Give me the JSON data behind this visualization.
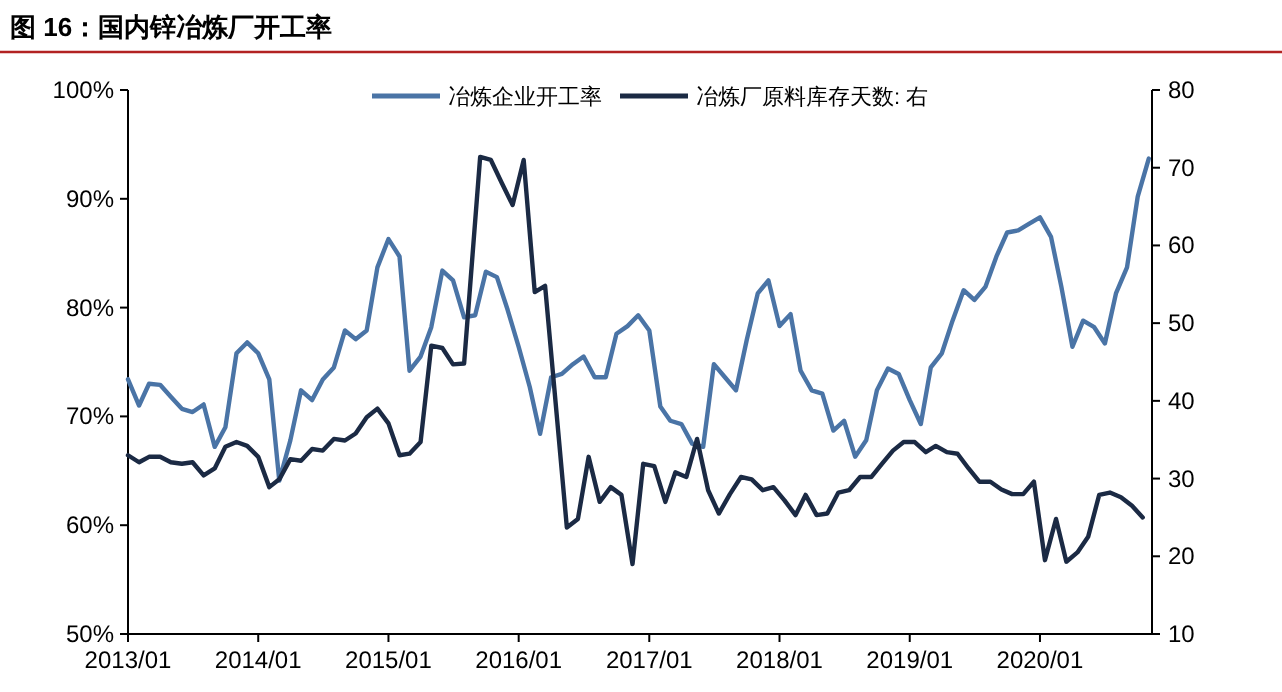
{
  "chart_data": {
    "type": "line",
    "title": "图 16：国内锌冶炼厂开工率",
    "legend": "top",
    "xlim": [
      "2013-01",
      "2020-11-10"
    ],
    "xticks": [
      {
        "value": "2013-01",
        "label": "2013/01"
      },
      {
        "value": "2014-01",
        "label": "2014/01"
      },
      {
        "value": "2015-01",
        "label": "2015/01"
      },
      {
        "value": "2016-01",
        "label": "2016/01"
      },
      {
        "value": "2017-01",
        "label": "2017/01"
      },
      {
        "value": "2018-01",
        "label": "2018/01"
      },
      {
        "value": "2019-01",
        "label": "2019/01"
      },
      {
        "value": "2020-01",
        "label": "2020/01"
      }
    ],
    "ylim": [
      50,
      100
    ],
    "yticks": [
      {
        "value": 50,
        "label": "50%"
      },
      {
        "value": 60,
        "label": "60%"
      },
      {
        "value": 70,
        "label": "70%"
      },
      {
        "value": 80,
        "label": "80%"
      },
      {
        "value": 90,
        "label": "90%"
      },
      {
        "value": 100,
        "label": "100%"
      }
    ],
    "y2lim": [
      10,
      80
    ],
    "y2ticks": [
      10,
      20,
      30,
      40,
      50,
      60,
      70,
      80
    ],
    "series": [
      {
        "name": "冶炼企业开工率",
        "color": "#4a74a6",
        "x": [
          "2013-01",
          "2013-02",
          "2013-03",
          "2013-04",
          "2013-05",
          "2013-06",
          "2013-07",
          "2013-08",
          "2013-09",
          "2013-10",
          "2013-11",
          "2013-12",
          "2014-01",
          "2014-02",
          "2014-03",
          "2014-04",
          "2014-05",
          "2014-06",
          "2014-07",
          "2014-08",
          "2014-09",
          "2014-10",
          "2014-11",
          "2014-12",
          "2015-01",
          "2015-02",
          "2015-03",
          "2015-04",
          "2015-05",
          "2015-06",
          "2015-07",
          "2015-08",
          "2015-09",
          "2015-10",
          "2015-11",
          "2015-12",
          "2016-01",
          "2016-02",
          "2016-03",
          "2016-04",
          "2016-05",
          "2016-06",
          "2016-07",
          "2016-08",
          "2016-09",
          "2016-10",
          "2016-11",
          "2016-12",
          "2017-01",
          "2017-02",
          "2017-03",
          "2017-04",
          "2017-05",
          "2017-06",
          "2017-07",
          "2017-08",
          "2017-09",
          "2017-10",
          "2017-11",
          "2017-12",
          "2018-01",
          "2018-02",
          "2018-03",
          "2018-04",
          "2018-05",
          "2018-06",
          "2018-07",
          "2018-08",
          "2018-09",
          "2018-10",
          "2018-11",
          "2018-12",
          "2019-01",
          "2019-02",
          "2019-03",
          "2019-04",
          "2019-05",
          "2019-06",
          "2019-07",
          "2019-08",
          "2019-09",
          "2019-10",
          "2019-11",
          "2019-12",
          "2020-01",
          "2020-02",
          "2020-03",
          "2020-04",
          "2020-05",
          "2020-06",
          "2020-07",
          "2020-08",
          "2020-09",
          "2020-10",
          "2020-11"
        ],
        "values": [
          73.4,
          71.0,
          73.0,
          72.9,
          71.8,
          70.7,
          70.4,
          71.1,
          67.2,
          69.0,
          75.8,
          76.8,
          75.8,
          73.4,
          64.1,
          67.8,
          72.4,
          71.5,
          73.4,
          74.5,
          77.9,
          77.1,
          77.9,
          83.7,
          86.3,
          84.7,
          74.2,
          75.5,
          78.2,
          83.4,
          82.5,
          79.1,
          79.3,
          83.3,
          82.8,
          79.8,
          76.4,
          72.7,
          68.4,
          73.6,
          73.9,
          74.8,
          75.5,
          73.6,
          73.6,
          77.6,
          78.3,
          79.3,
          77.9,
          70.9,
          69.6,
          69.3,
          67.5,
          67.2,
          74.8,
          73.6,
          72.4,
          77.0,
          81.3,
          82.5,
          78.3,
          79.4,
          74.2,
          72.4,
          72.1,
          68.7,
          69.6,
          66.3,
          67.8,
          72.4,
          74.4,
          73.9,
          71.5,
          69.3,
          74.5,
          75.8,
          78.8,
          81.6,
          80.7,
          81.9,
          84.7,
          86.9,
          87.1,
          87.7,
          88.3,
          86.5,
          81.9,
          76.4,
          78.8,
          78.2,
          76.7,
          81.3,
          83.7,
          90.2,
          93.7
        ]
      },
      {
        "name": "冶炼厂原料库存天数: 右",
        "color": "#1b2a44",
        "axis": "y2",
        "x": [
          "2013-01",
          "2013-02",
          "2013-03",
          "2013-04",
          "2013-05",
          "2013-06",
          "2013-07",
          "2013-08",
          "2013-09",
          "2013-10",
          "2013-11",
          "2013-12",
          "2014-01",
          "2014-02",
          "2014-03",
          "2014-04",
          "2014-05",
          "2014-06",
          "2014-07",
          "2014-08",
          "2014-09",
          "2014-10",
          "2014-11",
          "2014-12",
          "2015-01",
          "2015-02",
          "2015-03",
          "2015-04",
          "2015-05",
          "2015-06",
          "2015-07",
          "2015-08",
          "2015-09-15",
          "2015-10-15",
          "2015-11-15",
          "2015-12-15",
          "2016-01-15",
          "2016-02-15",
          "2016-03-15",
          "2016-05-15",
          "2016-06-15",
          "2016-07-15",
          "2016-08-15",
          "2016-09-15",
          "2016-10-15",
          "2016-11-15",
          "2016-12-15",
          "2017-01-15",
          "2017-02-15",
          "2017-03-15",
          "2017-04-15",
          "2017-05-15",
          "2017-06-15",
          "2017-07-15",
          "2017-08-15",
          "2017-09-15",
          "2017-10-15",
          "2017-11-15",
          "2017-12-15",
          "2018-01-15",
          "2018-02-15",
          "2018-03-15",
          "2018-04-15",
          "2018-05-15",
          "2018-06-15",
          "2018-07-15",
          "2018-08-15",
          "2018-09-15",
          "2018-10-15",
          "2018-11-15",
          "2018-12-15",
          "2019-01-15",
          "2019-02-15",
          "2019-03-15",
          "2019-04-15",
          "2019-05-15",
          "2019-06-15",
          "2019-07-15",
          "2019-08-15",
          "2019-09-15",
          "2019-10-15",
          "2019-11-15",
          "2019-12-15",
          "2020-01-15",
          "2020-02-15",
          "2020-03-15",
          "2020-04-15",
          "2020-05-15",
          "2020-06-15",
          "2020-07-15",
          "2020-08-15",
          "2020-09-15",
          "2020-10-15"
        ],
        "values": [
          33.0,
          32.1,
          32.8,
          32.8,
          32.1,
          31.9,
          32.1,
          30.4,
          31.3,
          34.1,
          34.7,
          34.2,
          32.8,
          28.9,
          29.9,
          32.5,
          32.3,
          33.8,
          33.6,
          35.1,
          34.9,
          35.8,
          37.9,
          39.0,
          37.1,
          33.0,
          33.2,
          34.7,
          47.1,
          46.8,
          44.7,
          44.8,
          71.4,
          71.0,
          68.0,
          65.2,
          71.0,
          54.0,
          54.8,
          23.7,
          24.8,
          32.8,
          27.0,
          28.9,
          27.9,
          19.0,
          31.9,
          31.6,
          27.0,
          30.8,
          30.2,
          35.1,
          28.5,
          25.5,
          28.0,
          30.2,
          29.9,
          28.5,
          28.9,
          27.2,
          25.3,
          27.9,
          25.3,
          25.5,
          28.2,
          28.5,
          30.2,
          30.2,
          31.9,
          33.6,
          34.7,
          34.7,
          33.4,
          34.2,
          33.4,
          33.2,
          31.3,
          29.6,
          29.6,
          28.6,
          28.0,
          28.0,
          29.6,
          19.5,
          24.8,
          19.3,
          20.5,
          22.5,
          27.9,
          28.2,
          27.6,
          26.5,
          25.0
        ]
      }
    ]
  }
}
